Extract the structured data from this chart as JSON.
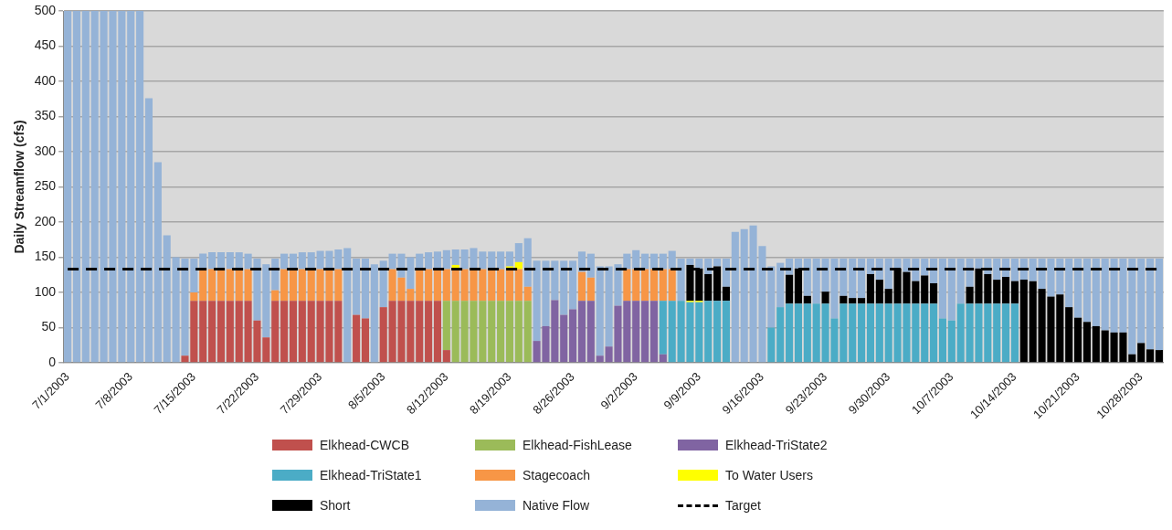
{
  "chart_data": {
    "type": "bar",
    "ylabel": "Daily Streamflow (cfs)",
    "stacked": true,
    "grid": "y",
    "legend": "bottom",
    "ylim": [
      0,
      500
    ],
    "yticks": [
      0,
      50,
      100,
      150,
      200,
      250,
      300,
      350,
      400,
      450,
      500
    ],
    "categories": [
      "7/1/2003",
      null,
      null,
      null,
      null,
      null,
      null,
      "7/8/2003",
      null,
      null,
      null,
      null,
      null,
      null,
      "7/15/2003",
      null,
      null,
      null,
      null,
      null,
      null,
      "7/22/2003",
      null,
      null,
      null,
      null,
      null,
      null,
      "7/29/2003",
      null,
      null,
      null,
      null,
      null,
      null,
      "8/5/2003",
      null,
      null,
      null,
      null,
      null,
      null,
      "8/12/2003",
      null,
      null,
      null,
      null,
      null,
      null,
      "8/19/2003",
      null,
      null,
      null,
      null,
      null,
      null,
      "8/26/2003",
      null,
      null,
      null,
      null,
      null,
      null,
      "9/2/2003",
      null,
      null,
      null,
      null,
      null,
      null,
      "9/9/2003",
      null,
      null,
      null,
      null,
      null,
      null,
      "9/16/2003",
      null,
      null,
      null,
      null,
      null,
      null,
      "9/23/2003",
      null,
      null,
      null,
      null,
      null,
      null,
      "9/30/2003",
      null,
      null,
      null,
      null,
      null,
      null,
      "10/7/2003",
      null,
      null,
      null,
      null,
      null,
      null,
      "10/14/2003",
      null,
      null,
      null,
      null,
      null,
      null,
      "10/21/2003",
      null,
      null,
      null,
      null,
      null,
      null,
      "10/28/2003",
      null,
      null
    ],
    "series": [
      {
        "name": "Elkhead-CWCB",
        "color": "#c0504d",
        "values": [
          0,
          0,
          0,
          0,
          0,
          0,
          0,
          0,
          0,
          0,
          0,
          0,
          0,
          10,
          88,
          88,
          88,
          88,
          88,
          88,
          88,
          60,
          36,
          88,
          88,
          88,
          88,
          88,
          88,
          88,
          88,
          0,
          68,
          63,
          0,
          79,
          88,
          88,
          88,
          88,
          88,
          88,
          18,
          0,
          0,
          0,
          0,
          0,
          0,
          0,
          0,
          0,
          0,
          0,
          0,
          0,
          0,
          0,
          0,
          0,
          0,
          0,
          0,
          0,
          0,
          0,
          0,
          0,
          0,
          0,
          0,
          0,
          0,
          0,
          0,
          0,
          0,
          0,
          0,
          0,
          0,
          0,
          0,
          0,
          0,
          0,
          0,
          0,
          0,
          0,
          0,
          0,
          0,
          0,
          0,
          0,
          0,
          0,
          0,
          0,
          0,
          0,
          0,
          0,
          0,
          0,
          0,
          0,
          0,
          0,
          0,
          0,
          0,
          0,
          0,
          0,
          0,
          0,
          0,
          0,
          0,
          0
        ]
      },
      {
        "name": "Elkhead-FishLease",
        "color": "#9bbb59",
        "values": [
          0,
          0,
          0,
          0,
          0,
          0,
          0,
          0,
          0,
          0,
          0,
          0,
          0,
          0,
          0,
          0,
          0,
          0,
          0,
          0,
          0,
          0,
          0,
          0,
          0,
          0,
          0,
          0,
          0,
          0,
          0,
          0,
          0,
          0,
          0,
          0,
          0,
          0,
          0,
          0,
          0,
          0,
          70,
          88,
          88,
          88,
          88,
          88,
          88,
          88,
          88,
          88,
          0,
          0,
          0,
          0,
          0,
          0,
          0,
          0,
          0,
          0,
          0,
          0,
          0,
          0,
          0,
          0,
          0,
          0,
          0,
          0,
          0,
          0,
          0,
          0,
          0,
          0,
          0,
          0,
          0,
          0,
          0,
          0,
          0,
          0,
          0,
          0,
          0,
          0,
          0,
          0,
          0,
          0,
          0,
          0,
          0,
          0,
          0,
          0,
          0,
          0,
          0,
          0,
          0,
          0,
          0,
          0,
          0,
          0,
          0,
          0,
          0,
          0,
          0,
          0,
          0,
          0,
          0,
          0,
          0,
          0
        ]
      },
      {
        "name": "Elkhead-TriState2",
        "color": "#8064a2",
        "values": [
          0,
          0,
          0,
          0,
          0,
          0,
          0,
          0,
          0,
          0,
          0,
          0,
          0,
          0,
          0,
          0,
          0,
          0,
          0,
          0,
          0,
          0,
          0,
          0,
          0,
          0,
          0,
          0,
          0,
          0,
          0,
          0,
          0,
          0,
          0,
          0,
          0,
          0,
          0,
          0,
          0,
          0,
          0,
          0,
          0,
          0,
          0,
          0,
          0,
          0,
          0,
          0,
          31,
          52,
          89,
          68,
          76,
          88,
          88,
          10,
          23,
          81,
          88,
          88,
          88,
          88,
          12,
          0,
          0,
          0,
          0,
          0,
          0,
          0,
          0,
          0,
          0,
          0,
          0,
          0,
          0,
          0,
          0,
          0,
          0,
          0,
          0,
          0,
          0,
          0,
          0,
          0,
          0,
          0,
          0,
          0,
          0,
          0,
          0,
          0,
          0,
          0,
          0,
          0,
          0,
          0,
          0,
          0,
          0,
          0,
          0,
          0,
          0,
          0,
          0,
          0,
          0,
          0,
          0,
          0,
          0,
          0
        ]
      },
      {
        "name": "Elkhead-TriState1",
        "color": "#4bacc6",
        "values": [
          0,
          0,
          0,
          0,
          0,
          0,
          0,
          0,
          0,
          0,
          0,
          0,
          0,
          0,
          0,
          0,
          0,
          0,
          0,
          0,
          0,
          0,
          0,
          0,
          0,
          0,
          0,
          0,
          0,
          0,
          0,
          0,
          0,
          0,
          0,
          0,
          0,
          0,
          0,
          0,
          0,
          0,
          0,
          0,
          0,
          0,
          0,
          0,
          0,
          0,
          0,
          0,
          0,
          0,
          0,
          0,
          0,
          0,
          0,
          0,
          0,
          0,
          0,
          0,
          0,
          0,
          76,
          88,
          88,
          86,
          86,
          88,
          88,
          88,
          0,
          0,
          0,
          0,
          50,
          79,
          84,
          84,
          84,
          84,
          84,
          63,
          84,
          84,
          84,
          84,
          84,
          84,
          84,
          84,
          84,
          84,
          84,
          63,
          60,
          84,
          84,
          84,
          84,
          84,
          84,
          84,
          0,
          0,
          0,
          0,
          0,
          0,
          0,
          0,
          0,
          0,
          0,
          0,
          0,
          0,
          0,
          0
        ]
      },
      {
        "name": "Stagecoach",
        "color": "#f79646",
        "values": [
          0,
          0,
          0,
          0,
          0,
          0,
          0,
          0,
          0,
          0,
          0,
          0,
          0,
          0,
          12,
          45,
          45,
          45,
          45,
          45,
          45,
          0,
          0,
          15,
          45,
          45,
          45,
          45,
          45,
          45,
          45,
          0,
          0,
          0,
          0,
          0,
          45,
          33,
          17,
          45,
          45,
          45,
          45,
          45,
          45,
          45,
          45,
          45,
          45,
          45,
          45,
          20,
          0,
          0,
          0,
          0,
          0,
          41,
          33,
          0,
          0,
          0,
          45,
          45,
          45,
          45,
          45,
          45,
          0,
          0,
          0,
          0,
          0,
          0,
          0,
          0,
          0,
          0,
          0,
          0,
          0,
          0,
          0,
          0,
          0,
          0,
          0,
          0,
          0,
          0,
          0,
          0,
          0,
          0,
          0,
          0,
          0,
          0,
          0,
          0,
          0,
          0,
          0,
          0,
          0,
          0,
          0,
          0,
          0,
          0,
          0,
          0,
          0,
          0,
          0,
          0,
          0,
          0,
          0,
          0,
          0,
          0
        ]
      },
      {
        "name": "To Water Users",
        "color": "#ffff00",
        "values": [
          0,
          0,
          0,
          0,
          0,
          0,
          0,
          0,
          0,
          0,
          0,
          0,
          0,
          0,
          0,
          0,
          0,
          0,
          0,
          0,
          0,
          0,
          0,
          0,
          0,
          0,
          0,
          0,
          0,
          0,
          0,
          0,
          0,
          0,
          0,
          0,
          0,
          0,
          0,
          0,
          0,
          0,
          0,
          6,
          0,
          null,
          0,
          0,
          0,
          4,
          10,
          0,
          0,
          0,
          0,
          0,
          0,
          0,
          0,
          0,
          0,
          0,
          0,
          0,
          0,
          0,
          0,
          0,
          0,
          2,
          2,
          0,
          0,
          0,
          0,
          0,
          0,
          0,
          0,
          0,
          0,
          0,
          0,
          0,
          0,
          0,
          0,
          0,
          0,
          0,
          0,
          0,
          0,
          0,
          0,
          0,
          0,
          0,
          0,
          0,
          0,
          0,
          0,
          0,
          0,
          0,
          0,
          0,
          0,
          0,
          0,
          0,
          0,
          0,
          0,
          0,
          0,
          0,
          0,
          0,
          0,
          0
        ]
      },
      {
        "name": "Short",
        "color": "#000000",
        "values": [
          0,
          0,
          0,
          0,
          0,
          0,
          0,
          0,
          0,
          0,
          0,
          0,
          0,
          0,
          0,
          0,
          0,
          0,
          0,
          0,
          0,
          0,
          0,
          0,
          0,
          0,
          0,
          0,
          0,
          0,
          0,
          0,
          0,
          0,
          0,
          0,
          0,
          0,
          0,
          0,
          0,
          0,
          0,
          0,
          0,
          0,
          0,
          0,
          0,
          0,
          0,
          0,
          0,
          0,
          0,
          0,
          0,
          0,
          0,
          0,
          0,
          0,
          0,
          0,
          0,
          0,
          0,
          0,
          0,
          51,
          46,
          38,
          49,
          20,
          0,
          0,
          0,
          0,
          0,
          0,
          41,
          50,
          11,
          0,
          17,
          0,
          11,
          8,
          8,
          42,
          34,
          21,
          50,
          45,
          32,
          40,
          29,
          0,
          0,
          0,
          24,
          50,
          42,
          34,
          38,
          32,
          118,
          116,
          105,
          94,
          97,
          79,
          64,
          58,
          52,
          46,
          43,
          43,
          12,
          28,
          19,
          18
        ]
      },
      {
        "name": "Native Flow",
        "color": "#95b3d7",
        "values": [
          500,
          500,
          500,
          500,
          500,
          500,
          500,
          500,
          500,
          376,
          285,
          181,
          150,
          138,
          48,
          22,
          24,
          24,
          24,
          24,
          22,
          88,
          104,
          45,
          22,
          22,
          24,
          24,
          26,
          26,
          28,
          163,
          80,
          85,
          140,
          66,
          22,
          34,
          45,
          22,
          24,
          25,
          27,
          22,
          28,
          30,
          25,
          25,
          25,
          21,
          27,
          69,
          114,
          93,
          56,
          77,
          69,
          29,
          34,
          127,
          114,
          59,
          22,
          27,
          22,
          22,
          22,
          26,
          60,
          9,
          14,
          22,
          11,
          40,
          186,
          190,
          195,
          166,
          87,
          63,
          23,
          14,
          53,
          64,
          47,
          85,
          53,
          56,
          56,
          22,
          30,
          43,
          14,
          19,
          32,
          24,
          35,
          85,
          88,
          64,
          40,
          14,
          22,
          30,
          26,
          32,
          30,
          32,
          43,
          54,
          51,
          69,
          84,
          90,
          96,
          102,
          105,
          105,
          136,
          120,
          129,
          130
        ]
      },
      {
        "name": "Target",
        "type": "line",
        "color": "#000000",
        "line_style": "dashed",
        "marker": "none",
        "values": [
          133,
          133,
          133,
          133,
          133,
          133,
          133,
          133,
          133,
          133,
          133,
          133,
          133,
          133,
          133,
          133,
          133,
          133,
          133,
          133,
          133,
          133,
          133,
          133,
          133,
          133,
          133,
          133,
          133,
          133,
          133,
          133,
          133,
          133,
          133,
          133,
          133,
          133,
          133,
          133,
          133,
          133,
          133,
          133,
          133,
          133,
          133,
          133,
          133,
          133,
          133,
          133,
          133,
          133,
          133,
          133,
          133,
          133,
          133,
          133,
          133,
          133,
          133,
          133,
          133,
          133,
          133,
          133,
          133,
          133,
          133,
          133,
          133,
          133,
          133,
          133,
          133,
          133,
          133,
          133,
          133,
          133,
          133,
          133,
          133,
          133,
          133,
          133,
          133,
          133,
          133,
          133,
          133,
          133,
          133,
          133,
          133,
          133,
          133,
          133,
          133,
          133,
          133,
          133,
          133,
          133,
          133,
          133,
          133,
          133,
          133,
          133,
          133,
          133,
          133,
          133,
          133,
          133,
          133,
          133,
          133,
          133
        ]
      }
    ]
  }
}
